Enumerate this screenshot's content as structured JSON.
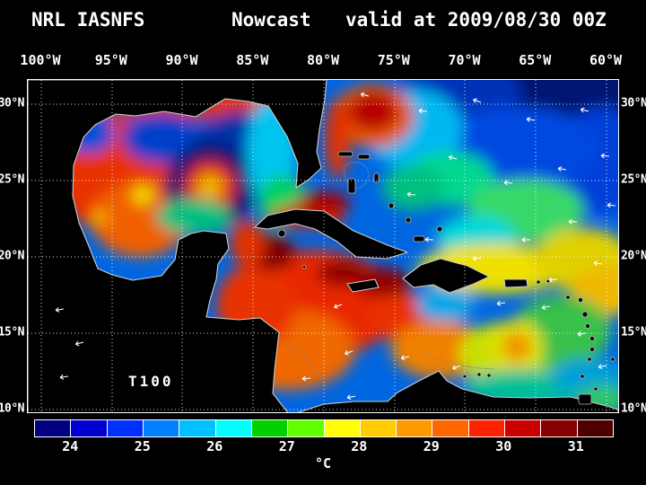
{
  "title": {
    "system": "NRL IASNFS",
    "product": "Nowcast",
    "valid": "valid at 2009/08/30 00Z"
  },
  "axes": {
    "top_ticks": [
      "100°W",
      "95°W",
      "90°W",
      "85°W",
      "80°W",
      "75°W",
      "70°W",
      "65°W",
      "60°W"
    ],
    "left_ticks": [
      "30°N",
      "25°N",
      "20°N",
      "15°N",
      "10°N"
    ],
    "right_ticks": [
      "30°N",
      "25°N",
      "20°N",
      "15°N",
      "10°N"
    ]
  },
  "map": {
    "annotation": "T100"
  },
  "colorbar": {
    "tick_labels": [
      "24",
      "25",
      "26",
      "27",
      "28",
      "29",
      "30",
      "31"
    ],
    "unit": "°C",
    "colors": [
      "#000080",
      "#0000d0",
      "#0030ff",
      "#0080ff",
      "#00c0ff",
      "#00ffff",
      "#00d000",
      "#60ff00",
      "#ffff00",
      "#ffcc00",
      "#ff9900",
      "#ff6600",
      "#ff2200",
      "#cc0000",
      "#880000",
      "#4d0000"
    ]
  },
  "chart_data": {
    "type": "heatmap",
    "title": "NRL IASNFS Nowcast valid at 2009/08/30 00Z",
    "variable": "T100",
    "unit": "°C",
    "lon_ticks": [
      "100°W",
      "95°W",
      "90°W",
      "85°W",
      "80°W",
      "75°W",
      "70°W",
      "65°W",
      "60°W"
    ],
    "lat_ticks": [
      "30°N",
      "25°N",
      "20°N",
      "15°N",
      "10°N"
    ],
    "colorbar_min": 23.5,
    "colorbar_max": 31.5,
    "colorbar_step": 0.5,
    "colorbar_tick_values": [
      24,
      25,
      26,
      27,
      28,
      29,
      30,
      31
    ],
    "legend_position": "bottom",
    "grid": true
  }
}
